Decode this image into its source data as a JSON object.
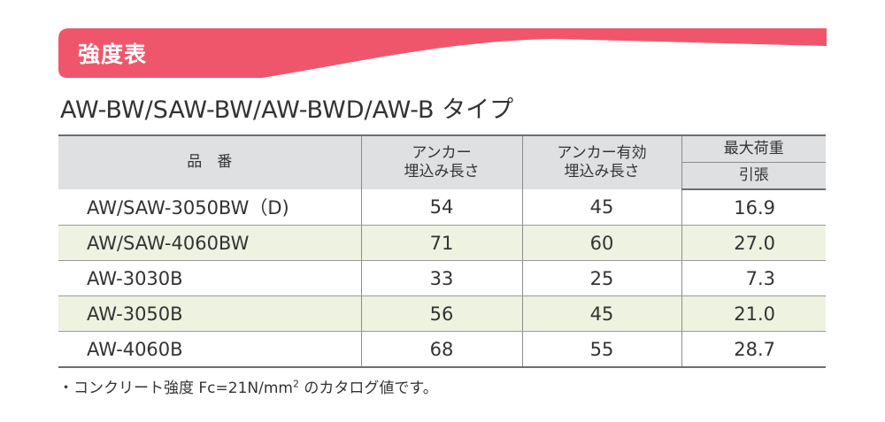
{
  "banner": {
    "title": "強度表",
    "color": "#f0566b"
  },
  "subtitle": "AW-BW/SAW-BW/AW-BWD/AW-B タイプ",
  "table": {
    "headers": {
      "product": "品　番",
      "anchor_length": "アンカー\n埋込み長さ",
      "effective_length": "アンカー有効\n埋込み長さ",
      "max_load": "最大荷重",
      "tension": "引張"
    },
    "rows": [
      {
        "product": "AW/SAW-3050BW（D)",
        "anchor_length": "54",
        "effective_length": "45",
        "tension": "16.9"
      },
      {
        "product": "AW/SAW-4060BW",
        "anchor_length": "71",
        "effective_length": "60",
        "tension": "27.0"
      },
      {
        "product": "AW-3030B",
        "anchor_length": "33",
        "effective_length": "25",
        "tension": "7.3"
      },
      {
        "product": "AW-3050B",
        "anchor_length": "56",
        "effective_length": "45",
        "tension": "21.0"
      },
      {
        "product": "AW-4060B",
        "anchor_length": "68",
        "effective_length": "55",
        "tension": "28.7"
      }
    ],
    "shade_color": "#eef3e1",
    "header_color": "#dfe0e2"
  },
  "footnote": {
    "text": "・コンクリート強度 Fc=21N/mm",
    "superscript": "2",
    "suffix": " のカタログ値です。"
  }
}
